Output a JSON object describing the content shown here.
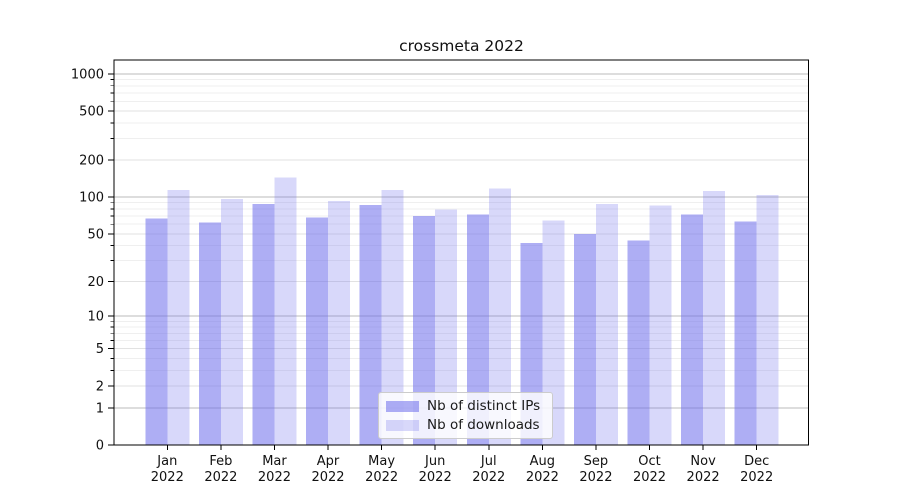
{
  "colors": {
    "ips_bar": "rgba(110,110,235,0.56)",
    "downloads_bar": "rgba(110,110,235,0.27)",
    "grid_decade": "#bbbbbb",
    "grid_labeled": "#e2e2e2",
    "grid_minor": "#efefef",
    "axis_line": "#000000",
    "tick_text": "#111111",
    "legend_border": "#cccccc"
  },
  "chart_data": {
    "type": "bar",
    "title": "crossmeta 2022",
    "categories": [
      "Jan 2022",
      "Feb 2022",
      "Mar 2022",
      "Apr 2022",
      "May 2022",
      "Jun 2022",
      "Jul 2022",
      "Aug 2022",
      "Sep 2022",
      "Oct 2022",
      "Nov 2022",
      "Dec 2022"
    ],
    "series": [
      {
        "name": "Nb of distinct IPs",
        "color_key": "ips_bar",
        "values": [
          67,
          62,
          88,
          68,
          86,
          70,
          72,
          42,
          50,
          44,
          72,
          63
        ]
      },
      {
        "name": "Nb of downloads",
        "color_key": "downloads_bar",
        "values": [
          114,
          96,
          145,
          93,
          114,
          79,
          118,
          64,
          88,
          85,
          112,
          104
        ]
      }
    ],
    "xlabel": "",
    "ylabel": "",
    "yscale": "log1p",
    "yticks": [
      0,
      1,
      2,
      5,
      10,
      20,
      50,
      100,
      200,
      500,
      1000
    ],
    "ytick_decades": [
      1,
      10,
      100,
      1000
    ],
    "yticks_minor": [
      3,
      4,
      6,
      7,
      8,
      9,
      30,
      40,
      60,
      70,
      80,
      90,
      300,
      400,
      600,
      700,
      800,
      900
    ],
    "ylim": [
      0,
      1290
    ],
    "grid": true,
    "legend_position": "lower center"
  }
}
